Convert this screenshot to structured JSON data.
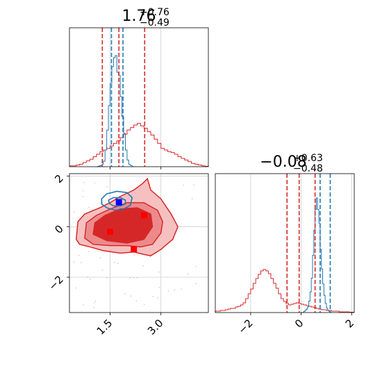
{
  "chart_data": {
    "type": "corner",
    "parameters": [
      {
        "title_main": "1.76",
        "title_sup": "+0.76",
        "title_sub": "−0.49",
        "axis_range": [
          0.3,
          4.4
        ],
        "ticks": [
          1.5,
          3.0
        ],
        "tick_labels": [
          "1.5",
          "3.0"
        ]
      },
      {
        "title_main": "−0.08",
        "title_sup": "+0.63",
        "title_sub": "−0.48",
        "axis_range": [
          -3.4,
          2.1
        ],
        "ticks": [
          -2,
          0,
          2
        ],
        "tick_labels": [
          "−2",
          "0",
          "2"
        ]
      }
    ],
    "colors": {
      "red": "#d62728",
      "blue": "#1f77b4",
      "marker_blue": "#0000ff",
      "marker_red": "#ff0000",
      "grid": "#cccccc"
    },
    "grid": true,
    "histograms": {
      "x_red": {
        "bin_start": 0.3,
        "bin_width": 0.1,
        "counts": [
          0.01,
          0.01,
          0.02,
          0.03,
          0.05,
          0.07,
          0.09,
          0.12,
          0.15,
          0.18,
          0.2,
          0.22,
          0.25,
          0.28,
          0.31,
          0.35,
          0.39,
          0.44,
          0.47,
          0.5,
          0.52,
          0.49,
          0.46,
          0.42,
          0.38,
          0.33,
          0.28,
          0.22,
          0.2,
          0.18,
          0.17,
          0.15,
          0.12,
          0.1,
          0.08,
          0.06,
          0.04,
          0.03,
          0.02,
          0.01,
          0.005
        ]
      },
      "x_blue": {
        "bin_start": 1.1,
        "bin_width": 0.05,
        "counts": [
          0,
          0.005,
          0.01,
          0.02,
          0.05,
          0.15,
          0.33,
          0.55,
          0.75,
          0.9,
          0.98,
          1.0,
          0.85,
          0.82,
          0.63,
          0.45,
          0.3,
          0.15,
          0.06,
          0.02,
          0.01,
          0
        ]
      },
      "y_red": {
        "bin_start": -3.4,
        "bin_width": 0.1,
        "counts": [
          0.02,
          0.02,
          0.03,
          0.03,
          0.04,
          0.05,
          0.06,
          0.06,
          0.08,
          0.09,
          0.11,
          0.14,
          0.2,
          0.27,
          0.34,
          0.42,
          0.49,
          0.55,
          0.6,
          0.62,
          0.6,
          0.56,
          0.49,
          0.42,
          0.35,
          0.27,
          0.2,
          0.16,
          0.13,
          0.11,
          0.12,
          0.13,
          0.14,
          0.13,
          0.12,
          0.11,
          0.1,
          0.09,
          0.08,
          0.07,
          0.06,
          0.05,
          0.04,
          0.04,
          0.03,
          0.03,
          0.02,
          0.02,
          0.02,
          0.01,
          0.01,
          0.01,
          0.01,
          0.005,
          0.005
        ]
      },
      "y_blue": {
        "bin_start": 0.0,
        "bin_width": 0.05,
        "counts": [
          0,
          0,
          0.01,
          0.02,
          0.03,
          0.05,
          0.1,
          0.18,
          0.3,
          0.5,
          0.72,
          0.9,
          1.0,
          0.9,
          0.78,
          0.55,
          0.38,
          0.25,
          0.15,
          0.08,
          0.04,
          0.02,
          0.01,
          0
        ]
      }
    },
    "quantile_lines": {
      "x_red": [
        1.27,
        1.76,
        2.52
      ],
      "x_blue": [
        1.54,
        1.88
      ],
      "y_red": [
        -0.56,
        -0.08,
        0.55
      ],
      "y_blue": [
        0.75,
        1.15
      ]
    },
    "contours": {
      "red_outer": [
        [
          0.5,
          -0.5
        ],
        [
          0.55,
          0.2
        ],
        [
          0.75,
          0.5
        ],
        [
          1.2,
          0.75
        ],
        [
          1.5,
          0.95
        ],
        [
          1.8,
          1.2
        ],
        [
          2.2,
          1.45
        ],
        [
          2.45,
          1.7
        ],
        [
          2.6,
          1.9
        ],
        [
          2.7,
          1.45
        ],
        [
          3.0,
          1.1
        ],
        [
          3.3,
          0.5
        ],
        [
          3.5,
          0.0
        ],
        [
          3.35,
          -0.5
        ],
        [
          3.0,
          -0.9
        ],
        [
          2.7,
          -1.15
        ],
        [
          2.5,
          -1.1
        ],
        [
          2.2,
          -1.0
        ],
        [
          1.8,
          -1.05
        ],
        [
          1.3,
          -0.95
        ],
        [
          0.9,
          -0.8
        ],
        [
          0.6,
          -0.7
        ]
      ],
      "red_mid": [
        [
          0.75,
          -0.45
        ],
        [
          0.8,
          0.15
        ],
        [
          1.1,
          0.45
        ],
        [
          1.5,
          0.7
        ],
        [
          2.0,
          0.95
        ],
        [
          2.5,
          0.95
        ],
        [
          2.9,
          0.65
        ],
        [
          3.05,
          0.2
        ],
        [
          3.0,
          -0.25
        ],
        [
          2.75,
          -0.7
        ],
        [
          2.4,
          -0.8
        ],
        [
          2.0,
          -0.75
        ],
        [
          1.5,
          -0.75
        ],
        [
          1.0,
          -0.7
        ]
      ],
      "red_inner": [
        [
          1.0,
          -0.3
        ],
        [
          1.05,
          0.15
        ],
        [
          1.35,
          0.45
        ],
        [
          1.8,
          0.7
        ],
        [
          2.3,
          0.75
        ],
        [
          2.7,
          0.5
        ],
        [
          2.75,
          0.0
        ],
        [
          2.5,
          -0.5
        ],
        [
          2.0,
          -0.65
        ],
        [
          1.4,
          -0.55
        ]
      ],
      "blue_outer": [
        [
          1.25,
          1.1
        ],
        [
          1.4,
          1.3
        ],
        [
          1.7,
          1.4
        ],
        [
          2.0,
          1.35
        ],
        [
          2.15,
          1.15
        ],
        [
          2.1,
          0.85
        ],
        [
          1.9,
          0.7
        ],
        [
          1.65,
          0.65
        ],
        [
          1.4,
          0.75
        ],
        [
          1.25,
          0.9
        ]
      ],
      "blue_inner": [
        [
          1.45,
          1.05
        ],
        [
          1.6,
          1.15
        ],
        [
          1.8,
          1.15
        ],
        [
          1.95,
          1.05
        ],
        [
          1.95,
          0.9
        ],
        [
          1.8,
          0.82
        ],
        [
          1.6,
          0.82
        ],
        [
          1.48,
          0.92
        ]
      ]
    },
    "markers": {
      "blue": [
        {
          "x": 1.76,
          "y": 0.97
        }
      ],
      "red": [
        {
          "x": 1.5,
          "y": -0.2
        },
        {
          "x": 2.2,
          "y": -0.9
        },
        {
          "x": 2.5,
          "y": 0.45
        }
      ]
    }
  }
}
